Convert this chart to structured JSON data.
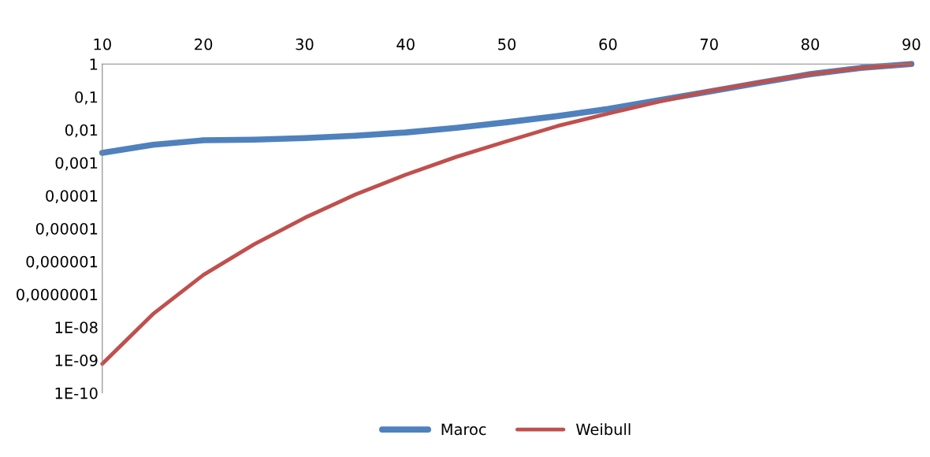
{
  "chart_data": {
    "type": "line",
    "x": [
      10,
      15,
      20,
      25,
      30,
      35,
      40,
      45,
      50,
      55,
      60,
      65,
      70,
      75,
      80,
      85,
      90
    ],
    "series": [
      {
        "name": "Maroc",
        "color": "#4f81bd",
        "values": [
          0.002,
          0.0035,
          0.0048,
          0.005,
          0.0056,
          0.0066,
          0.0083,
          0.0115,
          0.017,
          0.026,
          0.043,
          0.079,
          0.145,
          0.27,
          0.49,
          0.76,
          1.0
        ]
      },
      {
        "name": "Weibull",
        "color": "#c0504d",
        "values": [
          7.7e-10,
          2.5e-08,
          3.9e-07,
          3.3e-06,
          2.1e-05,
          0.000107,
          0.00043,
          0.0015,
          0.0045,
          0.013,
          0.031,
          0.071,
          0.15,
          0.28,
          0.49,
          0.75,
          1.0
        ]
      }
    ],
    "log": "y",
    "xlim": [
      10,
      90
    ],
    "xticks": [
      10,
      20,
      30,
      40,
      50,
      60,
      70,
      80,
      90
    ],
    "ylim": [
      1e-10,
      1
    ],
    "yticks": [
      {
        "value": 1,
        "label": "1"
      },
      {
        "value": 0.1,
        "label": "0,1"
      },
      {
        "value": 0.01,
        "label": "0,01"
      },
      {
        "value": 0.001,
        "label": "0,001"
      },
      {
        "value": 0.0001,
        "label": "0,0001"
      },
      {
        "value": 1e-05,
        "label": "0,00001"
      },
      {
        "value": 1e-06,
        "label": "0,000001"
      },
      {
        "value": 1e-07,
        "label": "0,0000001"
      },
      {
        "value": 1e-08,
        "label": "1E-08"
      },
      {
        "value": 1e-09,
        "label": "1E-09"
      },
      {
        "value": 1e-10,
        "label": "1E-10"
      }
    ],
    "grid": false,
    "legend": "bottom",
    "marker": "none",
    "line_style": "solid"
  }
}
